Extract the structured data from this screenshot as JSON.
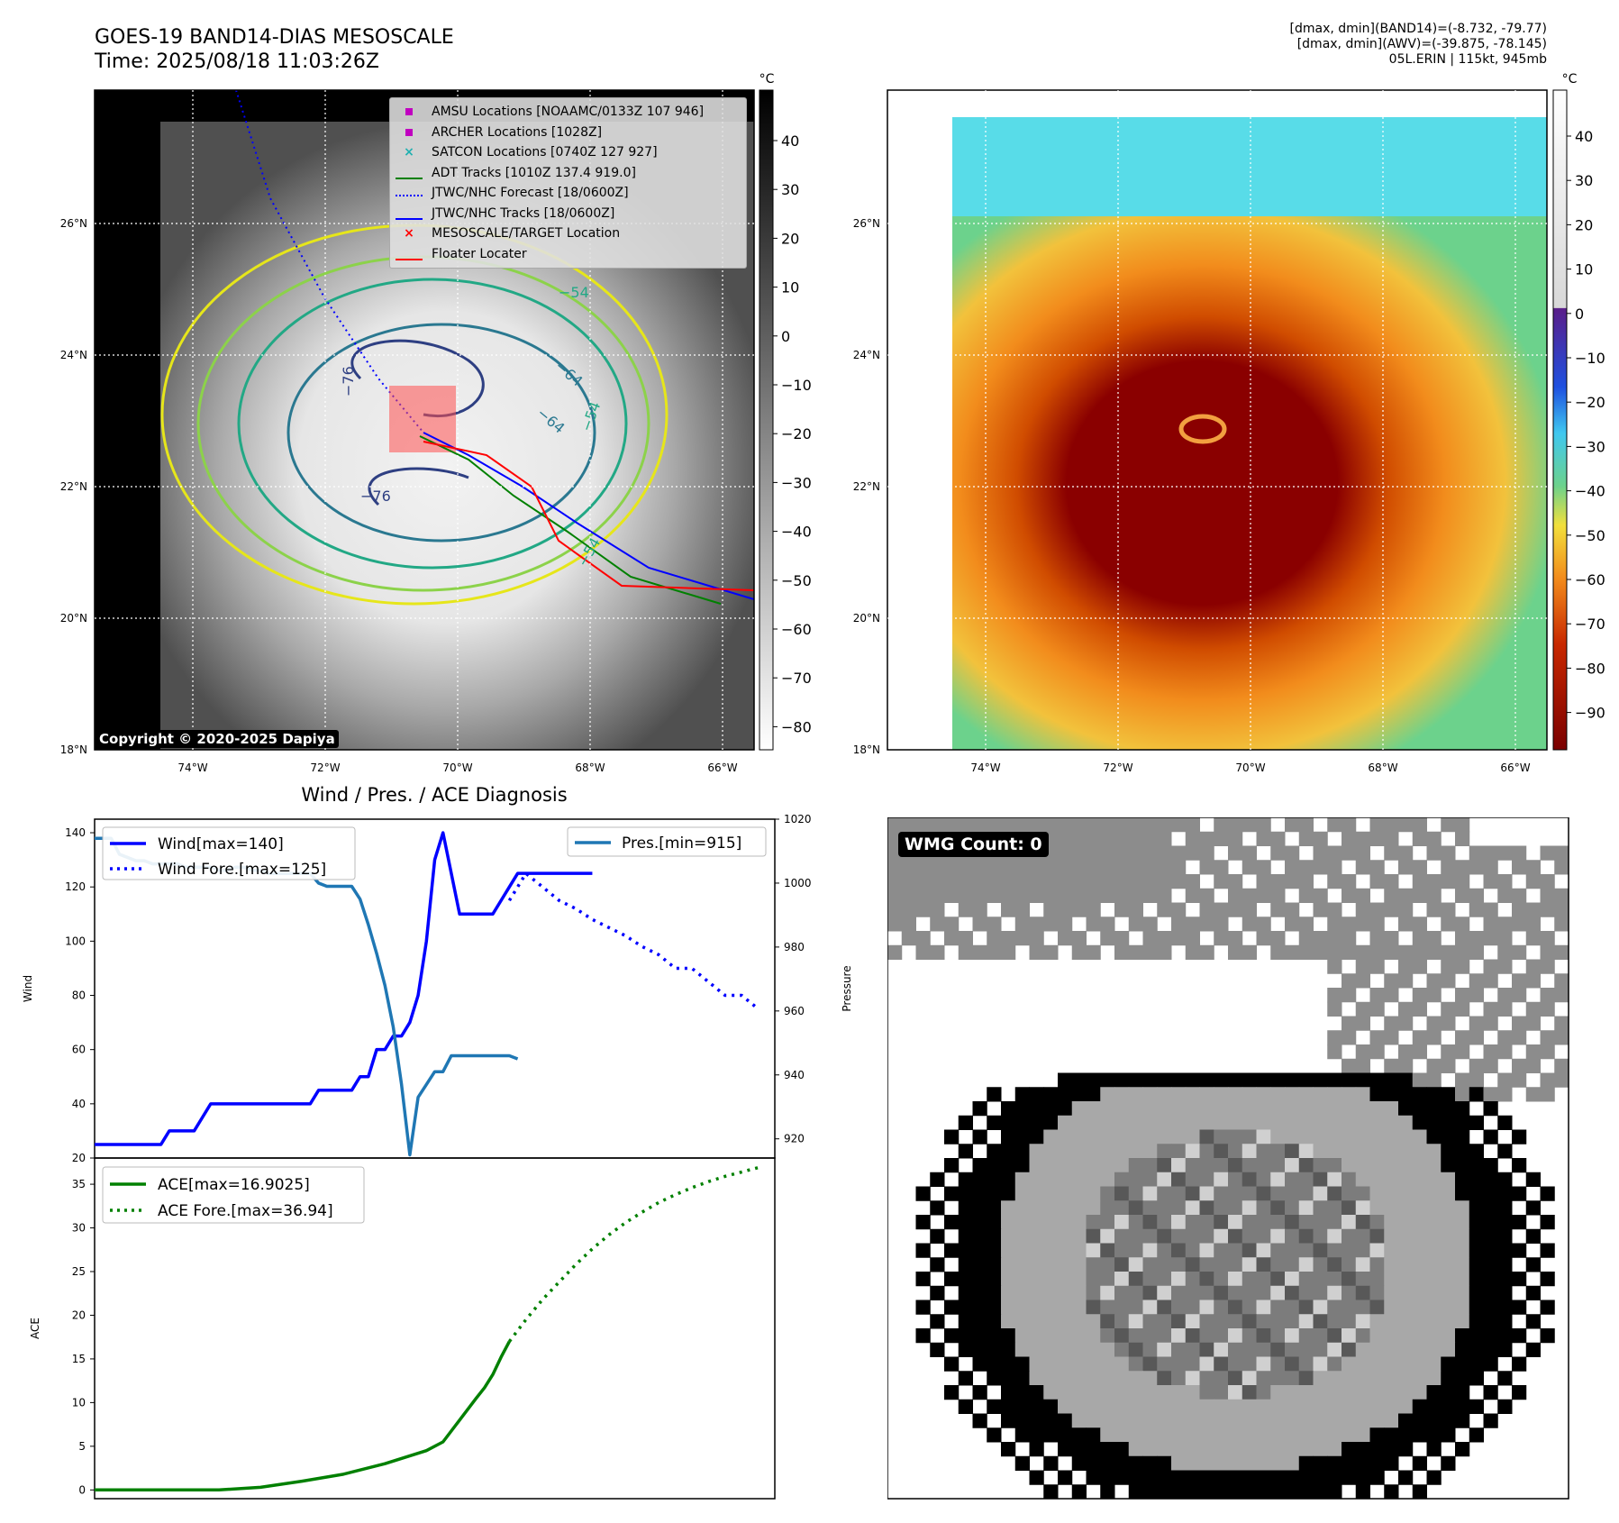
{
  "header": {
    "title_line1": "GOES-19 BAND14-DIAS MESOSCALE",
    "title_line2": "Time: 2025/08/18 11:03:26Z",
    "info_line1": "[dmax, dmin](BAND14)=(-8.732, -79.77)",
    "info_line2": "[dmax, dmin](AWV)=(-39.875, -78.145)",
    "info_line3": "05L.ERIN | 115kt, 945mb"
  },
  "map_axes": {
    "lon_labels": [
      "74°W",
      "72°W",
      "70°W",
      "68°W",
      "66°W"
    ],
    "lat_labels": [
      "26°N",
      "24°N",
      "22°N",
      "20°N",
      "18°N"
    ],
    "copyright": "Copyright © 2020-2025 Dapiya"
  },
  "colorbar_gray": {
    "unit": "°C",
    "ticks": [
      "40",
      "30",
      "20",
      "10",
      "0",
      "−10",
      "−20",
      "−30",
      "−40",
      "−50",
      "−60",
      "−70",
      "−80"
    ]
  },
  "colorbar_color": {
    "unit": "°C",
    "ticks": [
      "40",
      "30",
      "20",
      "10",
      "0",
      "−10",
      "−20",
      "−30",
      "−40",
      "−50",
      "−60",
      "−70",
      "−80",
      "−90"
    ]
  },
  "map_legend": [
    {
      "label": "AMSU Locations [NOAAMC/0133Z 107 946]",
      "marker": "square",
      "color": "#c000c0"
    },
    {
      "label": "ARCHER Locations [1028Z]",
      "marker": "square",
      "color": "#c000c0"
    },
    {
      "label": "SATCON Locations [0740Z 127 927]",
      "marker": "x",
      "color": "#20b0b0"
    },
    {
      "label": "ADT Tracks [1010Z 137.4 919.0]",
      "marker": "line",
      "color": "#008000"
    },
    {
      "label": "JTWC/NHC Forecast [18/0600Z]",
      "marker": "dotted",
      "color": "#0000ff"
    },
    {
      "label": "JTWC/NHC Tracks [18/0600Z]",
      "marker": "line-dot",
      "color": "#0000ff"
    },
    {
      "label": "MESOSCALE/TARGET Location",
      "marker": "x",
      "color": "#ff0000"
    },
    {
      "label": "Floater Locater",
      "marker": "line",
      "color": "#ff0000"
    }
  ],
  "contour_labels": [
    "−76",
    "−76",
    "−64",
    "−64",
    "−54",
    "−54",
    "−54"
  ],
  "wmg": {
    "label": "WMG Count: 0"
  },
  "chart_data": [
    {
      "type": "line",
      "title": "Wind / Pres. / ACE Diagnosis",
      "ylabel": "Wind",
      "ylim": [
        20,
        145
      ],
      "yticks": [
        20,
        40,
        60,
        80,
        100,
        120,
        140
      ],
      "series": [
        {
          "name": "Wind[max=140]",
          "color": "#0000ff",
          "style": "solid",
          "x": [
            0,
            1,
            2,
            3,
            4,
            5,
            6,
            7,
            8,
            9,
            10,
            11,
            12,
            13,
            14,
            15,
            16,
            17,
            18,
            19,
            20,
            21,
            22,
            23,
            24,
            25,
            26,
            27,
            28,
            29,
            30,
            31,
            32,
            33,
            34,
            35,
            36,
            37,
            38,
            39,
            40,
            41,
            42,
            43,
            44,
            45,
            46,
            47,
            48,
            49,
            50,
            51,
            52,
            53,
            54,
            55,
            56,
            57,
            58,
            59,
            60
          ],
          "values": [
            25,
            25,
            25,
            25,
            25,
            25,
            25,
            25,
            25,
            30,
            30,
            30,
            30,
            35,
            40,
            40,
            40,
            40,
            40,
            40,
            40,
            40,
            40,
            40,
            40,
            40,
            40,
            45,
            45,
            45,
            45,
            45,
            50,
            50,
            60,
            60,
            65,
            65,
            70,
            80,
            100,
            130,
            140,
            125,
            110,
            110,
            110,
            110,
            110,
            115,
            120,
            125,
            125,
            125,
            125,
            125,
            125,
            125,
            125,
            125,
            125
          ]
        },
        {
          "name": "Wind Fore.[max=125]",
          "color": "#0000ff",
          "style": "dotted",
          "x": [
            50,
            52,
            54,
            56,
            58,
            60,
            62,
            64,
            66,
            68,
            70,
            72,
            74,
            76,
            78,
            80
          ],
          "values": [
            115,
            125,
            120,
            115,
            112,
            108,
            105,
            102,
            98,
            95,
            90,
            90,
            85,
            80,
            80,
            75
          ]
        }
      ]
    },
    {
      "type": "line",
      "ylabel": "Pressure",
      "ylim": [
        914,
        1020
      ],
      "yticks": [
        920,
        940,
        960,
        980,
        1000,
        1020
      ],
      "series": [
        {
          "name": "Pres.[min=915]",
          "color": "#1f77b4",
          "style": "solid",
          "x": [
            0,
            1,
            2,
            3,
            4,
            5,
            6,
            7,
            8,
            9,
            10,
            11,
            12,
            13,
            14,
            15,
            16,
            17,
            18,
            19,
            20,
            21,
            22,
            23,
            24,
            25,
            26,
            27,
            28,
            29,
            30,
            31,
            32,
            33,
            34,
            35,
            36,
            37,
            38,
            39,
            40,
            41,
            42,
            43,
            44,
            45,
            46,
            47,
            48,
            49,
            50,
            51
          ],
          "values": [
            1014,
            1014,
            1014,
            1009,
            1008,
            1007,
            1007,
            1006,
            1006,
            1006,
            1006,
            1005,
            1005,
            1005,
            1005,
            1004,
            1004,
            1005,
            1005,
            1004,
            1004,
            1003,
            1003,
            1003,
            1003,
            1003,
            1003,
            1000,
            999,
            999,
            999,
            999,
            995,
            987,
            978,
            968,
            955,
            937,
            915,
            933,
            937,
            941,
            941,
            946,
            946,
            946,
            946,
            946,
            946,
            946,
            946,
            945
          ]
        }
      ]
    },
    {
      "type": "line",
      "ylabel": "ACE",
      "ylim": [
        -1,
        38
      ],
      "yticks": [
        0,
        5,
        10,
        15,
        20,
        25,
        30,
        35
      ],
      "series": [
        {
          "name": "ACE[max=16.9025]",
          "color": "#008000",
          "style": "solid",
          "x": [
            0,
            5,
            10,
            15,
            20,
            25,
            30,
            35,
            40,
            42,
            44,
            46,
            47,
            48,
            49,
            50
          ],
          "values": [
            0,
            0,
            0,
            0,
            0.3,
            1,
            1.8,
            3,
            4.5,
            5.5,
            8,
            10.5,
            11.7,
            13.2,
            15.2,
            17
          ]
        },
        {
          "name": "ACE Fore.[max=36.94]",
          "color": "#008000",
          "style": "dotted",
          "x": [
            50,
            52,
            54,
            56,
            58,
            60,
            62,
            64,
            66,
            68,
            70,
            72,
            74,
            76,
            78,
            80
          ],
          "values": [
            17,
            19.5,
            21.8,
            23.8,
            25.8,
            27.6,
            29.2,
            30.6,
            31.8,
            32.9,
            33.8,
            34.6,
            35.3,
            35.9,
            36.4,
            36.9
          ]
        }
      ]
    }
  ]
}
